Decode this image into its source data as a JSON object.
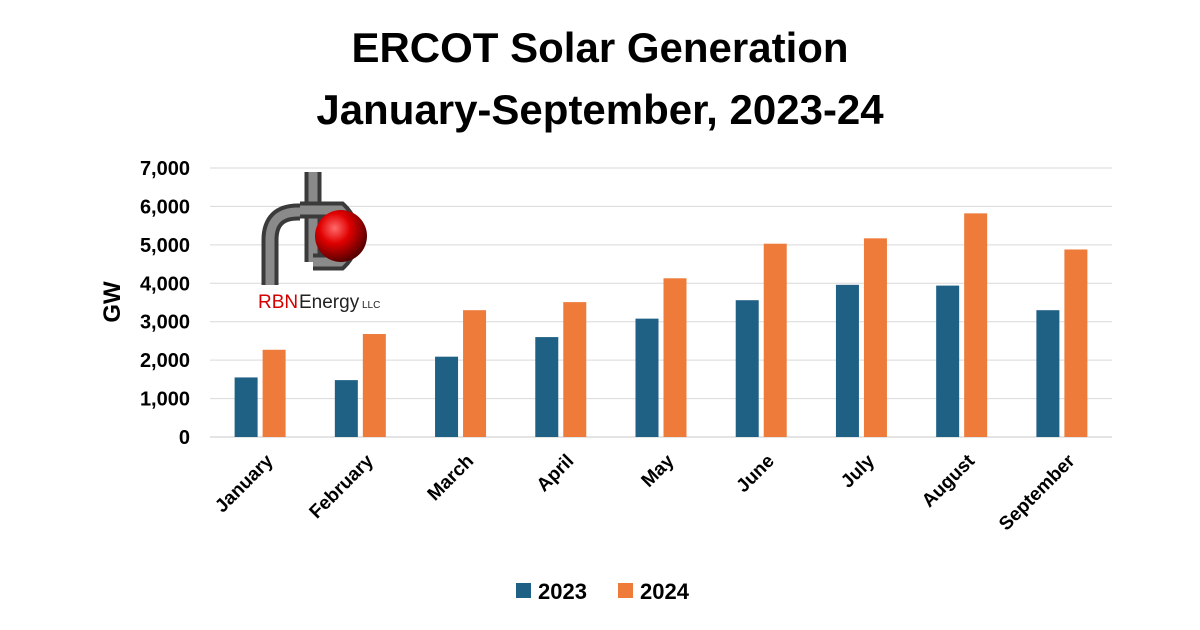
{
  "chart_data": {
    "type": "bar",
    "title": [
      "ERCOT Solar Generation",
      "January-September, 2023-24"
    ],
    "ylabel": "GW",
    "xlabel": "",
    "ylim": [
      0,
      7000
    ],
    "yticks": [
      "0",
      "1,000",
      "2,000",
      "3,000",
      "4,000",
      "5,000",
      "6,000",
      "7,000"
    ],
    "ytick_values": [
      0,
      1000,
      2000,
      3000,
      4000,
      5000,
      6000,
      7000
    ],
    "grid": true,
    "legend_position": "bottom",
    "categories": [
      "January",
      "February",
      "March",
      "April",
      "May",
      "June",
      "July",
      "August",
      "September"
    ],
    "series": [
      {
        "name": "2023",
        "color": "#1f6185",
        "values": [
          1550,
          1480,
          2090,
          2600,
          3080,
          3560,
          3960,
          3940,
          3300
        ]
      },
      {
        "name": "2024",
        "color": "#ee7b3a",
        "values": [
          2270,
          2680,
          3300,
          3510,
          4130,
          5030,
          5170,
          5820,
          4880
        ]
      }
    ]
  },
  "logo": {
    "company": "RBN Energy",
    "suffix": "LLC",
    "icon": "rbn-pipe-logo-icon",
    "accent_color": "#d40000"
  }
}
